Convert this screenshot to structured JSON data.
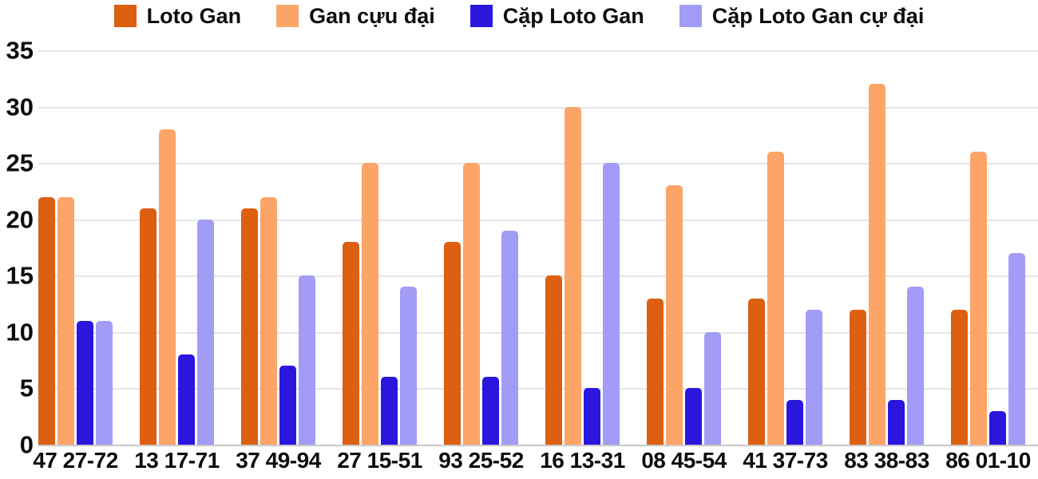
{
  "chart_data": {
    "type": "bar",
    "title": "",
    "xlabel": "",
    "ylabel": "",
    "categories": [
      "47 27-72",
      "13 17-71",
      "37 49-94",
      "27 15-51",
      "93 25-52",
      "16 13-31",
      "08 45-54",
      "41 37-73",
      "83 38-83",
      "86 01-10"
    ],
    "series": [
      {
        "name": "Loto Gan",
        "color": "#dd5f12",
        "values": [
          22,
          21,
          21,
          18,
          18,
          15,
          13,
          13,
          12,
          12
        ]
      },
      {
        "name": "Gan cựu đại",
        "color": "#fda468",
        "values": [
          22,
          28,
          22,
          25,
          25,
          30,
          23,
          26,
          32,
          26
        ]
      },
      {
        "name": "Cặp Loto Gan",
        "color": "#2a16dd",
        "values": [
          11,
          8,
          7,
          6,
          6,
          5,
          5,
          4,
          4,
          3
        ]
      },
      {
        "name": "Cặp Loto Gan cự đại",
        "color": "#a39cf6",
        "values": [
          11,
          20,
          15,
          14,
          19,
          25,
          10,
          12,
          14,
          17
        ]
      }
    ],
    "ylim": [
      0,
      35
    ],
    "yticks": [
      0,
      5,
      10,
      15,
      20,
      25,
      30,
      35
    ],
    "grid": "horizontal",
    "legend_position": "top"
  },
  "colors": {
    "background": "#ffffff",
    "grid": "#e5e5e5",
    "baseline": "#c9c9c9",
    "text": "#0d0d0d"
  }
}
